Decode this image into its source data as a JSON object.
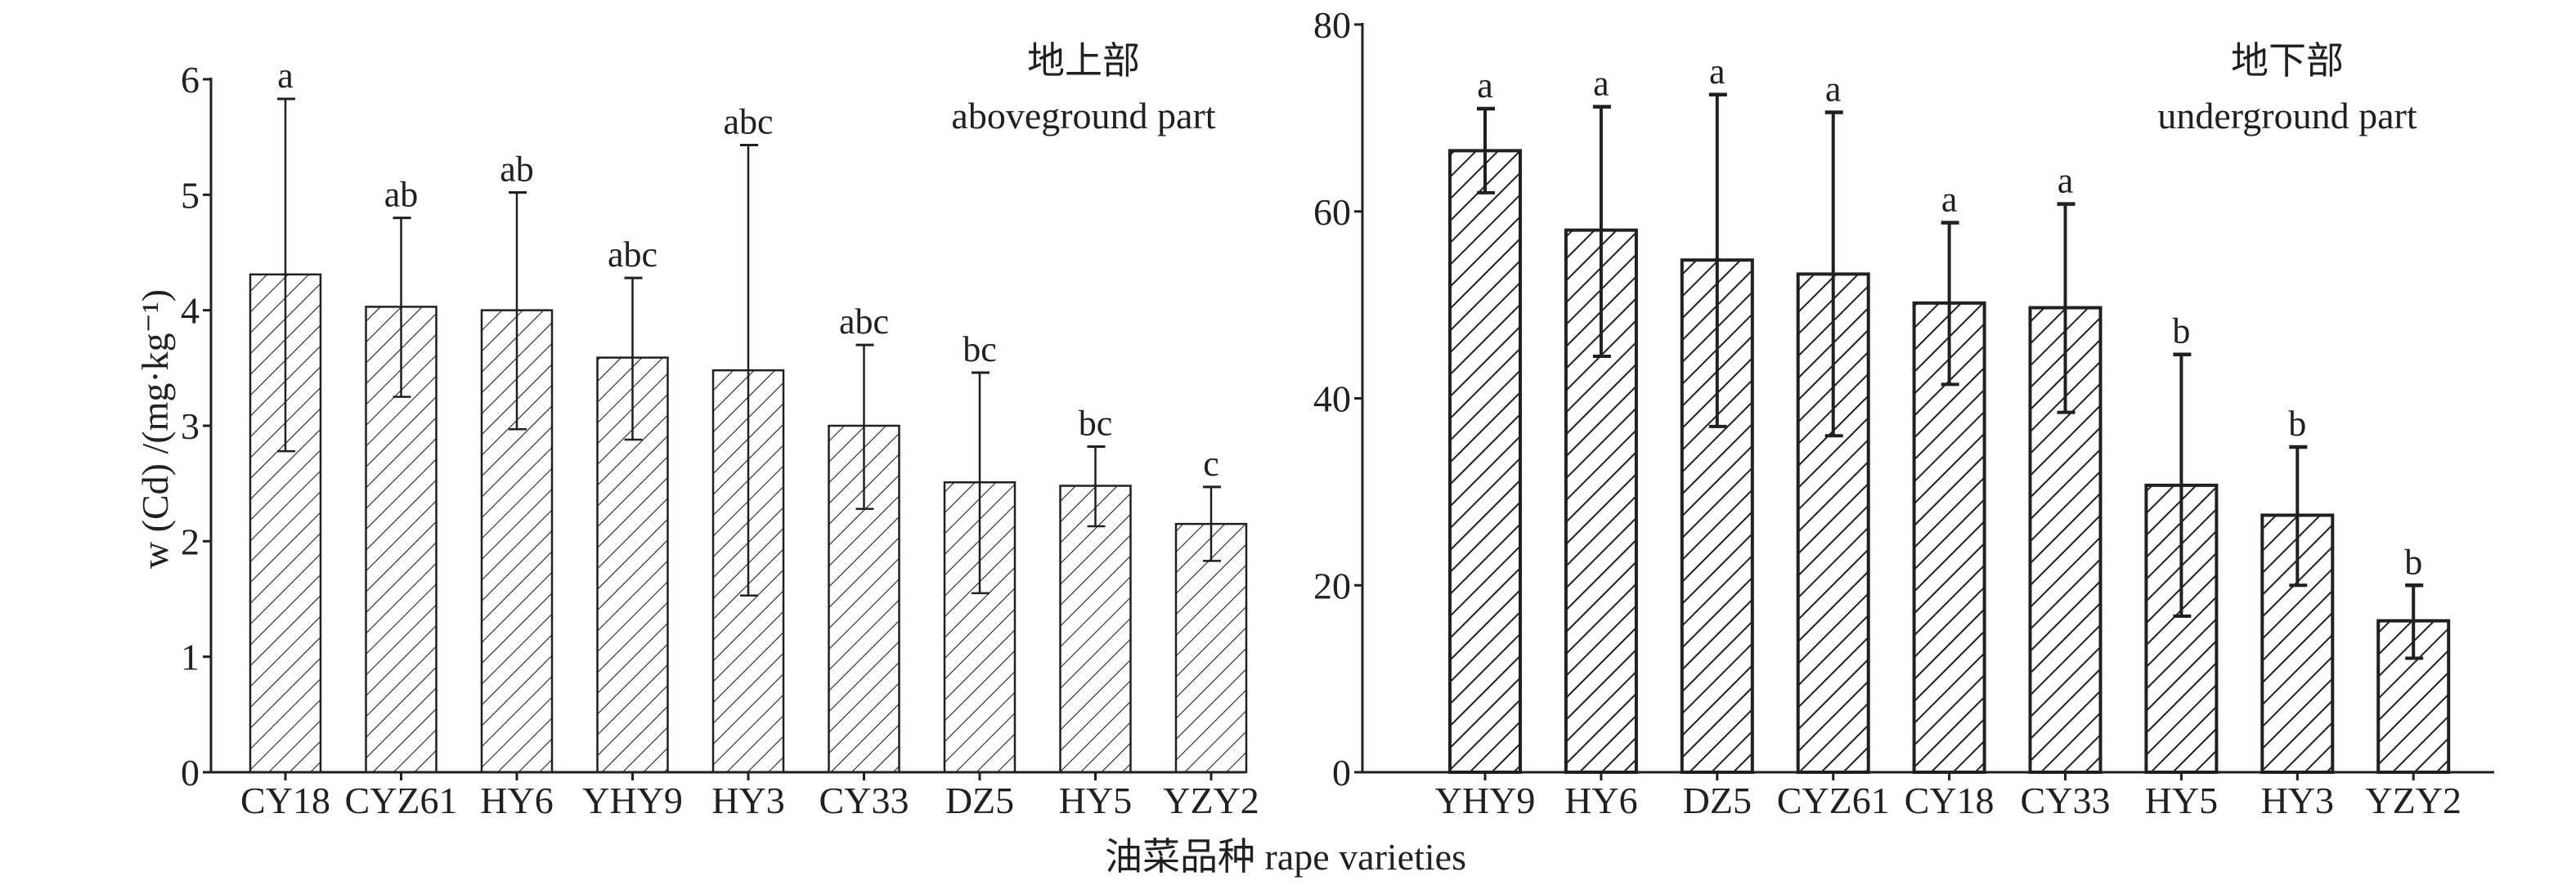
{
  "chart_data": [
    {
      "type": "bar",
      "title_cn": "地上部",
      "title": "aboveground part",
      "ylabel": "w (Cd) /(mg·kg⁻¹)",
      "xlabel": "油菜品种 rape varieties",
      "ylim": [
        0,
        6
      ],
      "yticks": [
        0,
        1,
        2,
        3,
        4,
        5,
        6
      ],
      "categories": [
        "CY18",
        "CYZ61",
        "HY6",
        "YHY9",
        "HY3",
        "CY33",
        "DZ5",
        "HY5",
        "YZY2"
      ],
      "values": [
        4.31,
        4.03,
        4.0,
        3.59,
        3.48,
        3.0,
        2.51,
        2.48,
        2.15
      ],
      "error_low": [
        2.78,
        3.25,
        2.97,
        2.88,
        1.53,
        2.28,
        1.55,
        2.13,
        1.83
      ],
      "error_high": [
        5.83,
        4.8,
        5.02,
        4.28,
        5.43,
        3.7,
        3.46,
        2.82,
        2.47
      ],
      "significance": [
        "a",
        "ab",
        "ab",
        "abc",
        "abc",
        "abc",
        "bc",
        "bc",
        "c"
      ]
    },
    {
      "type": "bar",
      "title_cn": "地下部",
      "title": "underground part",
      "ylim": [
        0,
        80
      ],
      "yticks": [
        0,
        20,
        40,
        60,
        80
      ],
      "categories": [
        "YHY9",
        "HY6",
        "DZ5",
        "CYZ61",
        "CY18",
        "CY33",
        "HY5",
        "HY3",
        "YZY2"
      ],
      "values": [
        66.5,
        58.0,
        54.8,
        53.3,
        50.2,
        49.7,
        30.7,
        27.5,
        16.2
      ],
      "error_low": [
        62.0,
        44.5,
        37.0,
        36.0,
        41.5,
        38.5,
        16.7,
        20.0,
        12.2
      ],
      "error_high": [
        71.0,
        71.2,
        72.5,
        70.6,
        58.8,
        60.8,
        44.7,
        34.8,
        20.0
      ],
      "significance": [
        "a",
        "a",
        "a",
        "a",
        "a",
        "a",
        "b",
        "b",
        "b"
      ]
    }
  ],
  "colors": {
    "ink": "#231f20",
    "background": "#ffffff"
  }
}
